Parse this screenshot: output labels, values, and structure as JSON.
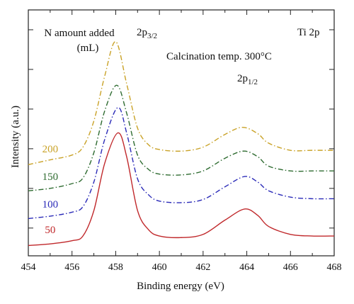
{
  "chart_data": {
    "type": "line",
    "title": "",
    "xlabel": "Binding energy (eV)",
    "ylabel": "Intensity (a.u.)",
    "xlim": [
      454,
      468
    ],
    "x_ticks": [
      "454",
      "456",
      "458",
      "460",
      "462",
      "464",
      "466",
      "468"
    ],
    "y_tick_labels_shown": false,
    "grid": false,
    "annotations": {
      "legend_title_line1": "N amount added",
      "legend_title_line2": "(mL)",
      "peak_main": "2p",
      "peak_main_sub": "3/2",
      "peak_second": "2p",
      "peak_second_sub": "1/2",
      "element": "Ti 2p",
      "condition": "Calcination temp. 300°C"
    },
    "series": [
      {
        "name": "200",
        "color": "#C9A227",
        "style": "dash-dot",
        "baseline": 0.8,
        "peak1_height": 1.55,
        "peak1_center": 458.0,
        "peak2_height": 0.47,
        "peak2_center": 463.8,
        "x": [
          454,
          455,
          456,
          456.5,
          457,
          457.5,
          458,
          458.5,
          459,
          459.5,
          460,
          461,
          462,
          463,
          463.8,
          464.5,
          465,
          466,
          467,
          468
        ],
        "y": [
          0.8,
          0.86,
          0.92,
          1.02,
          1.35,
          1.92,
          2.35,
          1.82,
          1.26,
          1.05,
          0.99,
          0.97,
          1.02,
          1.18,
          1.27,
          1.19,
          1.07,
          0.98,
          0.98,
          0.98
        ]
      },
      {
        "name": "150",
        "color": "#2E6B30",
        "style": "dash-dot",
        "baseline": 0.47,
        "peak1_height": 1.33,
        "peak1_center": 458.05,
        "peak2_height": 0.5,
        "peak2_center": 463.85,
        "x": [
          454,
          455,
          456,
          456.5,
          457,
          457.5,
          458.05,
          458.5,
          459,
          459.5,
          460,
          461,
          462,
          463,
          463.85,
          464.5,
          465,
          466,
          467,
          468
        ],
        "y": [
          0.47,
          0.5,
          0.56,
          0.63,
          0.95,
          1.48,
          1.8,
          1.45,
          0.92,
          0.74,
          0.68,
          0.67,
          0.72,
          0.88,
          0.97,
          0.9,
          0.78,
          0.72,
          0.72,
          0.72
        ]
      },
      {
        "name": "100",
        "color": "#2B2BB8",
        "style": "dash-dot",
        "baseline": 0.12,
        "peak1_height": 1.4,
        "peak1_center": 458.1,
        "peak2_height": 0.53,
        "peak2_center": 463.9,
        "x": [
          454,
          455,
          456,
          456.5,
          457,
          457.5,
          458.1,
          458.5,
          459,
          459.5,
          460,
          461,
          462,
          463,
          463.9,
          464.5,
          465,
          466,
          467,
          468
        ],
        "y": [
          0.12,
          0.15,
          0.2,
          0.27,
          0.58,
          1.12,
          1.52,
          1.2,
          0.62,
          0.42,
          0.34,
          0.32,
          0.36,
          0.52,
          0.65,
          0.58,
          0.47,
          0.39,
          0.37,
          0.37
        ]
      },
      {
        "name": "50",
        "color": "#C0282B",
        "style": "solid",
        "baseline": -0.22,
        "peak1_height": 1.42,
        "peak1_center": 458.1,
        "peak2_height": 0.46,
        "peak2_center": 463.9,
        "x": [
          454,
          455,
          456,
          456.5,
          457,
          457.5,
          458.1,
          458.5,
          459,
          459.5,
          460,
          461,
          462,
          463,
          463.9,
          464.5,
          465,
          466,
          467,
          468
        ],
        "y": [
          -0.22,
          -0.2,
          -0.16,
          -0.1,
          0.22,
          0.82,
          1.2,
          0.9,
          0.22,
          -0.02,
          -0.1,
          -0.12,
          -0.08,
          0.1,
          0.24,
          0.16,
          0.02,
          -0.08,
          -0.1,
          -0.1
        ]
      }
    ],
    "series_label_x": 455.0,
    "series_label_offsets": [
      0.12,
      0.1,
      0.1,
      0.12
    ]
  }
}
